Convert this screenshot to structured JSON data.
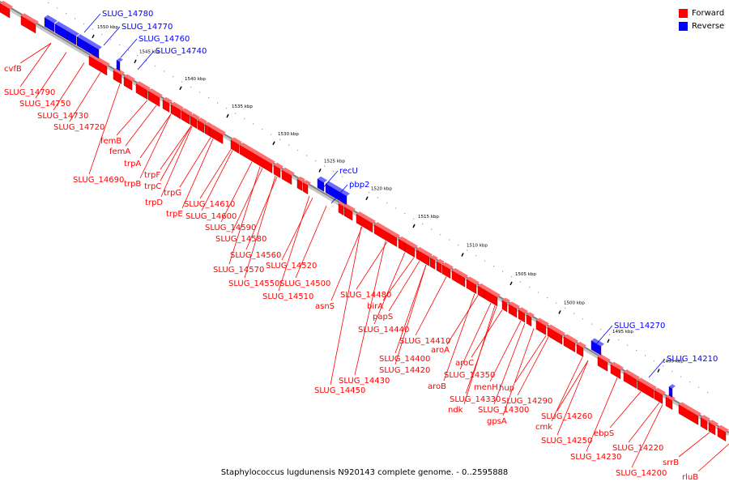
{
  "colors": {
    "forward": "#ff0000",
    "reverse": "#0000ff",
    "axis": "#808080"
  },
  "legend": {
    "forward_label": "Forward",
    "reverse_label": "Reverse"
  },
  "caption": "Staphylococcus lugdunensis N920143 complete genome. - 0..2595888",
  "ruler_unit": "kbp",
  "ruler_ticks": [
    {
      "label": "1550 kbp",
      "kbp": 1550
    },
    {
      "label": "1545 kbp",
      "kbp": 1545
    },
    {
      "label": "1540 kbp",
      "kbp": 1540
    },
    {
      "label": "1535 kbp",
      "kbp": 1535
    },
    {
      "label": "1530 kbp",
      "kbp": 1530
    },
    {
      "label": "1525 kbp",
      "kbp": 1525
    },
    {
      "label": "1520 kbp",
      "kbp": 1520
    },
    {
      "label": "1515 kbp",
      "kbp": 1515
    },
    {
      "label": "1510 kbp",
      "kbp": 1510
    },
    {
      "label": "1505 kbp",
      "kbp": 1505
    },
    {
      "label": "1500 kbp",
      "kbp": 1500
    },
    {
      "label": "1495 kbp",
      "kbp": 1495
    },
    {
      "label": "1490 kbp",
      "kbp": 1490
    }
  ],
  "forward_labels": [
    "cvfB",
    "SLUG_14790",
    "SLUG_14750",
    "SLUG_14730",
    "SLUG_14720",
    "femB",
    "femA",
    "trpA",
    "SLUG_14690",
    "trpF",
    "trpB",
    "trpC",
    "trpG",
    "trpD",
    "SLUG_14610",
    "trpE",
    "SLUG_14600",
    "SLUG_14590",
    "SLUG_14580",
    "SLUG_14560",
    "SLUG_14520",
    "SLUG_14570",
    "SLUG_14550",
    "SLUG_14500",
    "SLUG_14510",
    "SLUG_14480",
    "birA",
    "asnS",
    "papS",
    "SLUG_14440",
    "SLUG_14410",
    "aroA",
    "SLUG_14400",
    "SLUG_14420",
    "aroC",
    "SLUG_14350",
    "SLUG_14430",
    "aroB",
    "menH",
    "hup",
    "SLUG_14450",
    "SLUG_14330",
    "SLUG_14290",
    "ndk",
    "SLUG_14300",
    "gpsA",
    "SLUG_14260",
    "cmk",
    "ebpS",
    "SLUG_14250",
    "SLUG_14220",
    "SLUG_14230",
    "srrB",
    "SLUG_14200",
    "rluB"
  ],
  "reverse_labels": [
    "SLUG_14780",
    "SLUG_14770",
    "SLUG_14760",
    "SLUG_14740",
    "recU",
    "pbp2",
    "SLUG_14270",
    "SLUG_14210"
  ]
}
